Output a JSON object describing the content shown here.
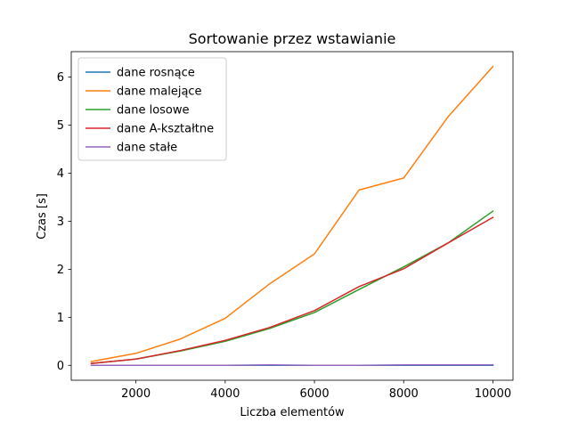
{
  "chart_data": {
    "type": "line",
    "title": "Sortowanie przez wstawianie",
    "xlabel": "Liczba elementów",
    "ylabel": "Czas [s]",
    "xlim": [
      550,
      10450
    ],
    "ylim": [
      -0.31,
      6.53
    ],
    "xticks": [
      2000,
      4000,
      6000,
      8000,
      10000
    ],
    "yticks": [
      0,
      1,
      2,
      3,
      4,
      5,
      6
    ],
    "grid": false,
    "legend_position": "top-left",
    "x": [
      1000,
      2000,
      3000,
      4000,
      5000,
      6000,
      7000,
      8000,
      9000,
      10000
    ],
    "series": [
      {
        "name": "dane rosnące",
        "color": "#1f77b4",
        "values": [
          0.0,
          0.0,
          0.0,
          0.0,
          0.0,
          0.0,
          0.0,
          0.0,
          0.0,
          0.0
        ]
      },
      {
        "name": "dane malejące",
        "color": "#ff7f0e",
        "values": [
          0.08,
          0.25,
          0.55,
          0.98,
          1.7,
          2.32,
          3.65,
          3.9,
          5.18,
          6.22
        ]
      },
      {
        "name": "dane losowe",
        "color": "#2ca02c",
        "values": [
          0.04,
          0.13,
          0.3,
          0.5,
          0.77,
          1.1,
          1.58,
          2.05,
          2.55,
          3.21
        ]
      },
      {
        "name": "dane A-kształtne",
        "color": "#d62728",
        "values": [
          0.04,
          0.13,
          0.31,
          0.52,
          0.79,
          1.14,
          1.64,
          2.01,
          2.55,
          3.08
        ]
      },
      {
        "name": "dane stałe",
        "color": "#9467bd",
        "values": [
          0.0,
          0.0,
          0.0,
          0.0,
          0.01,
          0.0,
          0.0,
          0.01,
          0.01,
          0.01
        ]
      }
    ]
  }
}
